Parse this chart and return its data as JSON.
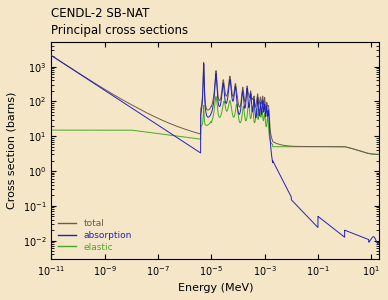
{
  "title_line1": "CENDL-2 SB-NAT",
  "title_line2": "Principal cross sections",
  "xlabel": "Energy (MeV)",
  "ylabel": "Cross section (barns)",
  "bg_color": "#f5e6c8",
  "xmin": 1e-11,
  "xmax": 20.0,
  "ymin": 0.003,
  "ymax": 5000,
  "legend_labels": [
    "total",
    "absorption",
    "elastic"
  ],
  "color_total": "#6b5b4e",
  "color_absorption": "#2222bb",
  "color_elastic": "#44aa22",
  "title_fontsize": 8.5,
  "label_fontsize": 8,
  "tick_fontsize": 7
}
